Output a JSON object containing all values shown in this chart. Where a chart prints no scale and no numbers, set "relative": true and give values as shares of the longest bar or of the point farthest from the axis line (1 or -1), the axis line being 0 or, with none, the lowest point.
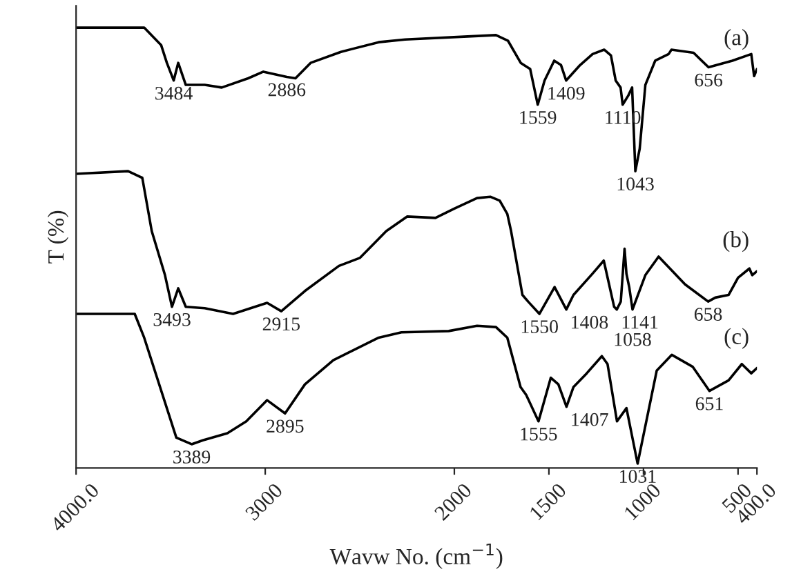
{
  "chart_data": {
    "type": "line",
    "relative": true,
    "xlabel": "Wavw No. (cm$^{−1}$)",
    "ylabel": "T (%)",
    "xlim": [
      4000,
      400
    ],
    "xticks": [
      {
        "value": 4000,
        "label": "4000.0"
      },
      3000,
      2000,
      1500,
      1000,
      500,
      {
        "value": 400,
        "label": "400.0"
      }
    ],
    "tick_labels": "x",
    "grid": false,
    "legend": false,
    "marker": "none",
    "line_style": "solid",
    "series": [
      {
        "name": "(a)",
        "color": "#000000",
        "x": [
          4000,
          3640,
          3550,
          3520,
          3484,
          3460,
          3420,
          3320,
          3230,
          3090,
          3010,
          2886,
          2840,
          2760,
          2600,
          2400,
          2260,
          1930,
          1780,
          1716,
          1649,
          1599,
          1559,
          1523,
          1472,
          1436,
          1409,
          1335,
          1269,
          1208,
          1172,
          1147,
          1121,
          1110,
          1080,
          1060,
          1043,
          1020,
          990,
          938,
          867,
          852,
          735,
          656,
          530,
          430,
          415,
          400
        ],
        "values": [
          1.0,
          1.0,
          0.96,
          0.92,
          0.88,
          0.92,
          0.87,
          0.87,
          0.864,
          0.885,
          0.9,
          0.888,
          0.885,
          0.92,
          0.945,
          0.967,
          0.973,
          0.98,
          0.983,
          0.97,
          0.92,
          0.906,
          0.825,
          0.88,
          0.925,
          0.915,
          0.88,
          0.915,
          0.94,
          0.95,
          0.937,
          0.88,
          0.864,
          0.825,
          0.846,
          0.864,
          0.674,
          0.725,
          0.87,
          0.925,
          0.94,
          0.95,
          0.943,
          0.91,
          0.925,
          0.94,
          0.89,
          0.906
        ]
      },
      {
        "name": "(b)",
        "color": "#000000",
        "x": [
          4000,
          3725,
          3650,
          3600,
          3530,
          3493,
          3460,
          3420,
          3320,
          3170,
          2990,
          2915,
          2790,
          2610,
          2500,
          2360,
          2250,
          2100,
          2000,
          1880,
          1810,
          1760,
          1720,
          1700,
          1640,
          1610,
          1550,
          1470,
          1408,
          1370,
          1270,
          1210,
          1155,
          1141,
          1120,
          1100,
          1090,
          1075,
          1058,
          990,
          920,
          780,
          658,
          620,
          550,
          500,
          440,
          425,
          400
        ],
        "values": [
          0.668,
          0.674,
          0.659,
          0.538,
          0.438,
          0.366,
          0.408,
          0.366,
          0.363,
          0.35,
          0.375,
          0.356,
          0.402,
          0.459,
          0.477,
          0.538,
          0.571,
          0.568,
          0.589,
          0.613,
          0.616,
          0.607,
          0.577,
          0.538,
          0.393,
          0.378,
          0.35,
          0.411,
          0.36,
          0.393,
          0.441,
          0.471,
          0.366,
          0.36,
          0.378,
          0.498,
          0.441,
          0.41,
          0.36,
          0.438,
          0.48,
          0.417,
          0.378,
          0.387,
          0.393,
          0.432,
          0.453,
          0.438,
          0.447
        ]
      },
      {
        "name": "(c)",
        "color": "#000000",
        "x": [
          4000,
          3690,
          3640,
          3470,
          3389,
          3330,
          3200,
          3100,
          2990,
          2895,
          2790,
          2640,
          2400,
          2280,
          2030,
          1880,
          1780,
          1720,
          1650,
          1620,
          1555,
          1490,
          1450,
          1407,
          1370,
          1300,
          1220,
          1190,
          1140,
          1090,
          1031,
          930,
          850,
          740,
          651,
          550,
          480,
          430,
          400
        ],
        "values": [
          0.35,
          0.35,
          0.296,
          0.069,
          0.054,
          0.063,
          0.079,
          0.106,
          0.154,
          0.124,
          0.19,
          0.245,
          0.296,
          0.308,
          0.311,
          0.323,
          0.32,
          0.296,
          0.184,
          0.166,
          0.106,
          0.205,
          0.19,
          0.139,
          0.184,
          0.215,
          0.254,
          0.236,
          0.106,
          0.136,
          0.01,
          0.221,
          0.257,
          0.23,
          0.175,
          0.199,
          0.236,
          0.215,
          0.227
        ]
      }
    ],
    "annotations": [
      {
        "text": "3484",
        "x": 3484,
        "y": 0.88
      },
      {
        "text": "2886",
        "x": 2886,
        "y": 0.888
      },
      {
        "text": "1559",
        "x": 1559,
        "y": 0.825
      },
      {
        "text": "1409",
        "x": 1409,
        "y": 0.88
      },
      {
        "text": "1110",
        "x": 1110,
        "y": 0.825
      },
      {
        "text": "1043",
        "x": 1043,
        "y": 0.674
      },
      {
        "text": "656",
        "x": 656,
        "y": 0.91
      },
      {
        "text": "3493",
        "x": 3493,
        "y": 0.366
      },
      {
        "text": "2915",
        "x": 2915,
        "y": 0.356
      },
      {
        "text": "1550",
        "x": 1550,
        "y": 0.35
      },
      {
        "text": "1408",
        "x": 1408,
        "y": 0.36
      },
      {
        "text": "1141",
        "x": 1141,
        "y": 0.36
      },
      {
        "text": "1058",
        "x": 1058,
        "y": 0.36
      },
      {
        "text": "658",
        "x": 658,
        "y": 0.378
      },
      {
        "text": "3389",
        "x": 3389,
        "y": 0.054
      },
      {
        "text": "2895",
        "x": 2895,
        "y": 0.124
      },
      {
        "text": "1555",
        "x": 1555,
        "y": 0.106
      },
      {
        "text": "1407",
        "x": 1407,
        "y": 0.139
      },
      {
        "text": "1031",
        "x": 1031,
        "y": 0.01
      },
      {
        "text": "651",
        "x": 651,
        "y": 0.175
      }
    ]
  }
}
